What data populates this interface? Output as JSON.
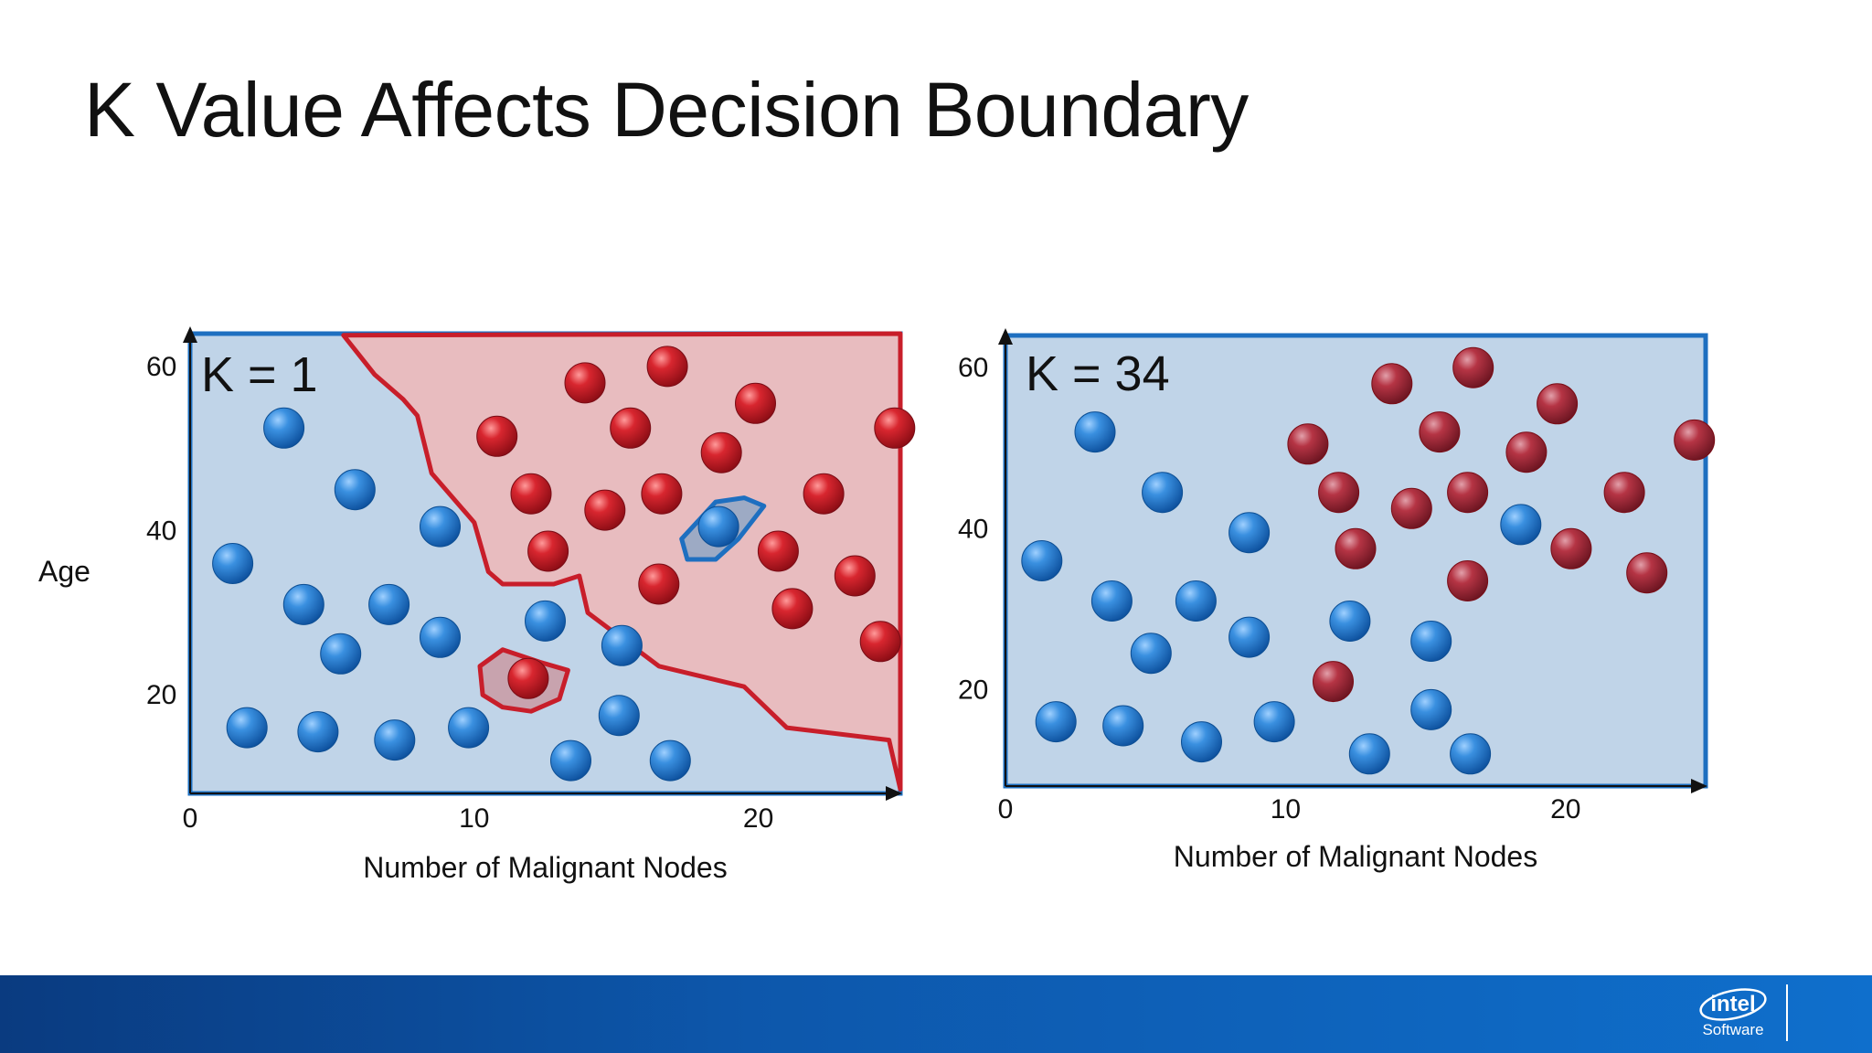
{
  "slide": {
    "title": "K Value Affects Decision Boundary",
    "brand_logo_text": "intel",
    "brand_subtext": "Software"
  },
  "colors": {
    "class_a": "#1e6fc0",
    "class_b": "#c81e2a",
    "region_a": "#c0d4e8",
    "region_b": "#e8bcbf"
  },
  "y_axis_title": "Age",
  "chart_data": [
    {
      "type": "scatter",
      "panel_label": "K = 1",
      "xlabel": "Number of Malignant Nodes",
      "ylabel": "Age",
      "xlim": [
        0,
        25
      ],
      "ylim": [
        8,
        64
      ],
      "x_ticks": [
        "0",
        "10",
        "20"
      ],
      "y_ticks": [
        "20",
        "40",
        "60"
      ],
      "grid": false,
      "regions": [
        {
          "class": "A",
          "description": "whole plot area shaded A except the class-B region"
        },
        {
          "class": "B",
          "boundary": [
            [
              5.4,
              63.8
            ],
            [
              25,
              64
            ],
            [
              25,
              8.5
            ],
            [
              24.6,
              14.5
            ],
            [
              21,
              16
            ],
            [
              19.5,
              21
            ],
            [
              16.5,
              23.5
            ],
            [
              14,
              30
            ],
            [
              13.7,
              34.5
            ],
            [
              12.8,
              33.5
            ],
            [
              11,
              33.5
            ],
            [
              10.5,
              35
            ],
            [
              10,
              41
            ],
            [
              8.5,
              47
            ],
            [
              8,
              54
            ],
            [
              7.5,
              56
            ],
            [
              6.5,
              59
            ]
          ]
        },
        {
          "class": "A",
          "island": true,
          "boundary": [
            [
              17.3,
              39
            ],
            [
              18.5,
              43.5
            ],
            [
              19.5,
              44
            ],
            [
              20.2,
              43
            ],
            [
              19.3,
              39
            ],
            [
              18.5,
              36.5
            ],
            [
              17.5,
              36.5
            ]
          ]
        },
        {
          "class": "B",
          "island": true,
          "boundary": [
            [
              10.2,
              23.5
            ],
            [
              11,
              25.5
            ],
            [
              12.3,
              24
            ],
            [
              13.3,
              23
            ],
            [
              13,
              19.5
            ],
            [
              12,
              18
            ],
            [
              11,
              18.5
            ],
            [
              10.3,
              20
            ]
          ]
        }
      ],
      "series": [
        {
          "class": "A",
          "points": [
            [
              1.5,
              36
            ],
            [
              3.3,
              52.5
            ],
            [
              5.8,
              45
            ],
            [
              8.8,
              40.5
            ],
            [
              4,
              31
            ],
            [
              7,
              31
            ],
            [
              5.3,
              25
            ],
            [
              8.8,
              27
            ],
            [
              12.5,
              29
            ],
            [
              15.2,
              26
            ],
            [
              2,
              16
            ],
            [
              4.5,
              15.5
            ],
            [
              7.2,
              14.5
            ],
            [
              9.8,
              16
            ],
            [
              13.4,
              12
            ],
            [
              15.1,
              17.5
            ],
            [
              16.9,
              12
            ],
            [
              18.6,
              40.5
            ]
          ]
        },
        {
          "class": "B",
          "points": [
            [
              13.9,
              58
            ],
            [
              16.8,
              60
            ],
            [
              19.9,
              55.5
            ],
            [
              24.8,
              52.5
            ],
            [
              10.8,
              51.5
            ],
            [
              15.5,
              52.5
            ],
            [
              18.7,
              49.5
            ],
            [
              12,
              44.5
            ],
            [
              14.6,
              42.5
            ],
            [
              16.6,
              44.5
            ],
            [
              22.3,
              44.5
            ],
            [
              12.6,
              37.5
            ],
            [
              20.7,
              37.5
            ],
            [
              16.5,
              33.5
            ],
            [
              23.4,
              34.5
            ],
            [
              21.2,
              30.5
            ],
            [
              24.3,
              26.5
            ],
            [
              11.9,
              22
            ]
          ]
        }
      ]
    },
    {
      "type": "scatter",
      "panel_label": "K = 34",
      "xlabel": "Number of Malignant Nodes",
      "ylabel": "Age",
      "xlim": [
        0,
        25
      ],
      "ylim": [
        8,
        64
      ],
      "x_ticks": [
        "0",
        "10",
        "20"
      ],
      "y_ticks": [
        "20",
        "40",
        "60"
      ],
      "grid": false,
      "regions": [
        {
          "class": "A",
          "description": "whole plot area shaded A"
        }
      ],
      "series": [
        {
          "class": "A",
          "points": [
            [
              1.3,
              36
            ],
            [
              3.2,
              52
            ],
            [
              5.6,
              44.5
            ],
            [
              3.8,
              31
            ],
            [
              6.8,
              31
            ],
            [
              5.2,
              24.5
            ],
            [
              8.7,
              26.5
            ],
            [
              8.7,
              39.5
            ],
            [
              12.3,
              28.5
            ],
            [
              15.2,
              26
            ],
            [
              1.8,
              16
            ],
            [
              4.2,
              15.5
            ],
            [
              7,
              13.5
            ],
            [
              9.6,
              16
            ],
            [
              13,
              12
            ],
            [
              15.2,
              17.5
            ],
            [
              16.6,
              12
            ],
            [
              18.4,
              40.5
            ]
          ]
        },
        {
          "class": "B",
          "points": [
            [
              13.8,
              58
            ],
            [
              16.7,
              60
            ],
            [
              19.7,
              55.5
            ],
            [
              24.6,
              51
            ],
            [
              10.8,
              50.5
            ],
            [
              15.5,
              52
            ],
            [
              18.6,
              49.5
            ],
            [
              11.9,
              44.5
            ],
            [
              14.5,
              42.5
            ],
            [
              16.5,
              44.5
            ],
            [
              22.1,
              44.5
            ],
            [
              12.5,
              37.5
            ],
            [
              20.2,
              37.5
            ],
            [
              16.5,
              33.5
            ],
            [
              22.9,
              34.5
            ],
            [
              11.7,
              21
            ]
          ]
        }
      ]
    }
  ]
}
